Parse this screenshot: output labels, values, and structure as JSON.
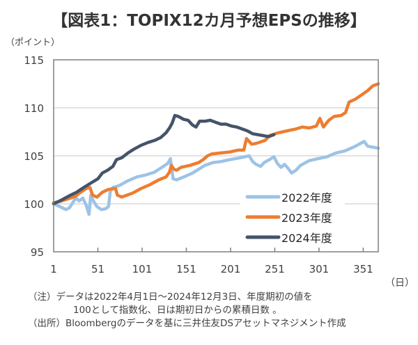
{
  "title": "【図表1：TOPIX12カ月予想EPSの推移】",
  "notes": {
    "line1": "（注）データは2022年4月1日～2024年12月3日、年度期初の値を",
    "line2": "100として指数化、日は期初日からの累積日数 。",
    "line3": "（出所）Bloombergのデータを基に三井住友DSアセットマネジメント作成"
  },
  "chart_data": {
    "type": "line",
    "title": "TOPIX12カ月予想EPSの推移",
    "xlabel": "（日）",
    "ylabel": "（ポイント）",
    "xlim": [
      1,
      368
    ],
    "ylim": [
      95,
      115
    ],
    "x_ticks": [
      1,
      51,
      101,
      151,
      201,
      251,
      301,
      351
    ],
    "y_ticks": [
      95,
      100,
      105,
      110,
      115
    ],
    "grid": "horizontal",
    "legend_position": "bottom-right",
    "series": [
      {
        "name": "2022年度",
        "color": "#9dc3e6",
        "points": [
          [
            1,
            100.0
          ],
          [
            8,
            99.7
          ],
          [
            15,
            99.4
          ],
          [
            19,
            99.6
          ],
          [
            26,
            100.6
          ],
          [
            30,
            100.3
          ],
          [
            34,
            100.6
          ],
          [
            38,
            99.8
          ],
          [
            41,
            98.9
          ],
          [
            43,
            100.9
          ],
          [
            46,
            100.3
          ],
          [
            50,
            99.7
          ],
          [
            55,
            99.4
          ],
          [
            60,
            99.5
          ],
          [
            63,
            99.7
          ],
          [
            65,
            101.3
          ],
          [
            68,
            101.7
          ],
          [
            75,
            101.9
          ],
          [
            85,
            102.4
          ],
          [
            95,
            102.8
          ],
          [
            105,
            103.0
          ],
          [
            115,
            103.3
          ],
          [
            125,
            103.9
          ],
          [
            130,
            104.2
          ],
          [
            133,
            104.7
          ],
          [
            136,
            102.6
          ],
          [
            140,
            102.5
          ],
          [
            148,
            102.8
          ],
          [
            158,
            103.2
          ],
          [
            165,
            103.6
          ],
          [
            172,
            104.0
          ],
          [
            181,
            104.3
          ],
          [
            190,
            104.4
          ],
          [
            200,
            104.6
          ],
          [
            212,
            104.8
          ],
          [
            222,
            105.0
          ],
          [
            226,
            104.4
          ],
          [
            230,
            104.1
          ],
          [
            235,
            103.9
          ],
          [
            239,
            104.3
          ],
          [
            245,
            104.6
          ],
          [
            250,
            104.9
          ],
          [
            254,
            104.2
          ],
          [
            258,
            103.8
          ],
          [
            262,
            104.1
          ],
          [
            266,
            103.7
          ],
          [
            270,
            103.2
          ],
          [
            275,
            103.5
          ],
          [
            280,
            104.0
          ],
          [
            290,
            104.5
          ],
          [
            300,
            104.7
          ],
          [
            310,
            104.9
          ],
          [
            320,
            105.3
          ],
          [
            330,
            105.5
          ],
          [
            340,
            105.9
          ],
          [
            348,
            106.3
          ],
          [
            352,
            106.5
          ],
          [
            356,
            106.0
          ],
          [
            362,
            105.9
          ],
          [
            368,
            105.8
          ]
        ]
      },
      {
        "name": "2023年度",
        "color": "#ed7d31",
        "points": [
          [
            1,
            100.1
          ],
          [
            10,
            100.3
          ],
          [
            20,
            100.6
          ],
          [
            26,
            100.8
          ],
          [
            30,
            101.1
          ],
          [
            38,
            101.6
          ],
          [
            42,
            101.7
          ],
          [
            45,
            100.9
          ],
          [
            50,
            100.7
          ],
          [
            56,
            101.2
          ],
          [
            63,
            101.5
          ],
          [
            71,
            101.6
          ],
          [
            73,
            100.9
          ],
          [
            78,
            100.7
          ],
          [
            90,
            101.1
          ],
          [
            100,
            101.6
          ],
          [
            110,
            102.0
          ],
          [
            120,
            102.5
          ],
          [
            128,
            102.8
          ],
          [
            132,
            103.3
          ],
          [
            134,
            104.0
          ],
          [
            137,
            103.6
          ],
          [
            140,
            103.5
          ],
          [
            145,
            103.8
          ],
          [
            155,
            104.0
          ],
          [
            165,
            104.3
          ],
          [
            170,
            104.6
          ],
          [
            175,
            105.0
          ],
          [
            180,
            105.2
          ],
          [
            190,
            105.3
          ],
          [
            200,
            105.4
          ],
          [
            210,
            105.6
          ],
          [
            216,
            105.6
          ],
          [
            219,
            106.8
          ],
          [
            225,
            106.2
          ],
          [
            230,
            106.3
          ],
          [
            240,
            106.6
          ],
          [
            245,
            107.1
          ],
          [
            255,
            107.4
          ],
          [
            265,
            107.6
          ],
          [
            275,
            107.8
          ],
          [
            282,
            108.0
          ],
          [
            290,
            107.9
          ],
          [
            298,
            108.1
          ],
          [
            302,
            108.9
          ],
          [
            306,
            108.0
          ],
          [
            312,
            108.7
          ],
          [
            318,
            109.1
          ],
          [
            326,
            109.2
          ],
          [
            331,
            109.5
          ],
          [
            335,
            110.6
          ],
          [
            342,
            110.9
          ],
          [
            350,
            111.4
          ],
          [
            356,
            111.8
          ],
          [
            362,
            112.3
          ],
          [
            368,
            112.5
          ]
        ]
      },
      {
        "name": "2024年度",
        "color": "#44546a",
        "points": [
          [
            1,
            100.0
          ],
          [
            10,
            100.4
          ],
          [
            20,
            100.9
          ],
          [
            27,
            101.2
          ],
          [
            35,
            101.7
          ],
          [
            42,
            102.1
          ],
          [
            51,
            102.6
          ],
          [
            56,
            103.2
          ],
          [
            62,
            103.5
          ],
          [
            68,
            103.9
          ],
          [
            72,
            104.6
          ],
          [
            78,
            104.8
          ],
          [
            85,
            105.3
          ],
          [
            92,
            105.7
          ],
          [
            100,
            106.1
          ],
          [
            108,
            106.4
          ],
          [
            115,
            106.6
          ],
          [
            122,
            106.9
          ],
          [
            128,
            107.4
          ],
          [
            132,
            107.9
          ],
          [
            135,
            108.4
          ],
          [
            138,
            109.2
          ],
          [
            142,
            109.1
          ],
          [
            148,
            108.8
          ],
          [
            153,
            108.7
          ],
          [
            158,
            108.2
          ],
          [
            162,
            108.0
          ],
          [
            166,
            108.6
          ],
          [
            172,
            108.6
          ],
          [
            178,
            108.7
          ],
          [
            184,
            108.5
          ],
          [
            190,
            108.3
          ],
          [
            196,
            108.3
          ],
          [
            202,
            108.1
          ],
          [
            208,
            108.0
          ],
          [
            214,
            107.8
          ],
          [
            220,
            107.6
          ],
          [
            226,
            107.3
          ],
          [
            232,
            107.2
          ],
          [
            238,
            107.1
          ],
          [
            244,
            107.0
          ],
          [
            250,
            107.2
          ]
        ]
      }
    ]
  }
}
